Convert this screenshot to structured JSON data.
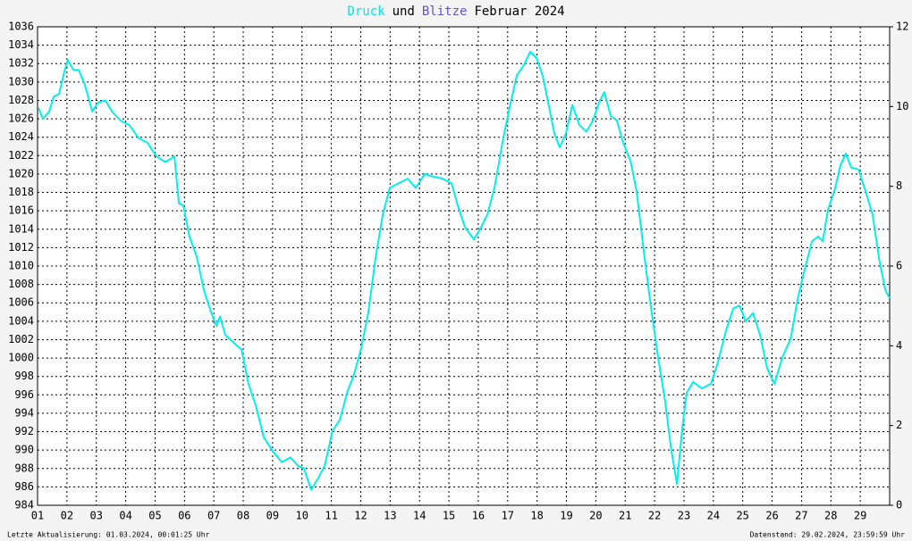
{
  "chart_data": {
    "type": "line",
    "title_parts": [
      {
        "text": "Druck",
        "color": "#00e8e8"
      },
      {
        "text": "und",
        "color": "#000000"
      },
      {
        "text": "Blitze",
        "color": "#6a50d0"
      },
      {
        "text": "Februar 2024",
        "color": "#000000"
      }
    ],
    "footer_left": "Letzte Aktualisierung: 01.03.2024, 00:01:25 Uhr",
    "footer_right": "Datenstand: 29.02.2024, 23:59:59 Uhr",
    "x": [
      1.03,
      1.18,
      1.4,
      1.55,
      1.73,
      1.91,
      2.03,
      2.22,
      2.4,
      2.61,
      2.86,
      3.07,
      3.31,
      3.53,
      3.83,
      4.13,
      4.44,
      4.74,
      5.05,
      5.35,
      5.66,
      5.81,
      5.96,
      6.17,
      6.42,
      6.66,
      6.9,
      7.09,
      7.21,
      7.39,
      7.7,
      7.94,
      8.18,
      8.43,
      8.7,
      9.0,
      9.31,
      9.61,
      9.86,
      10.07,
      10.31,
      10.56,
      10.77,
      11.04,
      11.29,
      11.53,
      11.77,
      12.02,
      12.26,
      12.5,
      12.75,
      12.99,
      13.29,
      13.6,
      13.87,
      14.18,
      14.48,
      14.79,
      15.09,
      15.3,
      15.55,
      15.85,
      16.09,
      16.31,
      16.55,
      16.82,
      17.07,
      17.31,
      17.56,
      17.77,
      17.98,
      18.19,
      18.41,
      18.59,
      18.77,
      18.98,
      19.2,
      19.44,
      19.68,
      19.9,
      20.11,
      20.29,
      20.51,
      20.72,
      20.93,
      21.18,
      21.39,
      21.63,
      21.88,
      22.12,
      22.36,
      22.55,
      22.76,
      22.94,
      23.09,
      23.31,
      23.61,
      23.92,
      24.16,
      24.43,
      24.68,
      24.89,
      25.1,
      25.35,
      25.59,
      25.83,
      26.08,
      26.35,
      26.63,
      26.87,
      27.12,
      27.36,
      27.57,
      27.72,
      27.9,
      28.15,
      28.33,
      28.51,
      28.69,
      28.94,
      29.18,
      29.42,
      29.64,
      29.85,
      30.0
    ],
    "series": [
      {
        "name": "Druck",
        "color": "#00f0f0",
        "values": [
          1027.2,
          1026,
          1026.8,
          1028.4,
          1028.7,
          1031.1,
          1032.4,
          1031.3,
          1031.3,
          1029.7,
          1026.8,
          1027.8,
          1028,
          1026.8,
          1025.8,
          1025.3,
          1023.9,
          1023.4,
          1021.9,
          1021.3,
          1021.9,
          1016.8,
          1016.6,
          1013.2,
          1011,
          1007.4,
          1005,
          1003.5,
          1004.5,
          1002.5,
          1001.6,
          1000.9,
          997.2,
          994.8,
          991.4,
          989.9,
          988.7,
          989.2,
          988.3,
          988,
          985.7,
          987,
          988.3,
          992.1,
          993.3,
          996.2,
          998.2,
          1001.1,
          1005,
          1010.8,
          1015.6,
          1018.5,
          1019,
          1019.5,
          1018.5,
          1020,
          1019.7,
          1019.5,
          1019,
          1016.6,
          1014.2,
          1012.9,
          1014.2,
          1015.6,
          1018.5,
          1023.4,
          1027.3,
          1030.7,
          1031.9,
          1033.3,
          1032.6,
          1030.7,
          1027.3,
          1024.4,
          1022.9,
          1024.4,
          1027.5,
          1025.3,
          1024.6,
          1025.8,
          1027.8,
          1028.9,
          1026.3,
          1025.8,
          1023.4,
          1021.4,
          1018.1,
          1011.7,
          1005.4,
          1000.1,
          995.3,
          990.4,
          986.3,
          992.3,
          996.2,
          997.4,
          996.7,
          997.2,
          999.6,
          1003,
          1005.4,
          1005.7,
          1004,
          1004.9,
          1002.5,
          998.9,
          997.2,
          1000.1,
          1002.1,
          1006.4,
          1009.8,
          1012.7,
          1013.2,
          1012.7,
          1016.1,
          1018.5,
          1021,
          1022.2,
          1020.7,
          1020.5,
          1018.1,
          1015.6,
          1010.8,
          1007.4,
          1006.5
        ]
      }
    ],
    "xlim": [
      1,
      30
    ],
    "xticks": [
      {
        "value": 1,
        "label": "01"
      },
      {
        "value": 2,
        "label": "02"
      },
      {
        "value": 3,
        "label": "03"
      },
      {
        "value": 4,
        "label": "04"
      },
      {
        "value": 5,
        "label": "05"
      },
      {
        "value": 6,
        "label": "06"
      },
      {
        "value": 7,
        "label": "07"
      },
      {
        "value": 8,
        "label": "08"
      },
      {
        "value": 9,
        "label": "09"
      },
      10,
      11,
      12,
      13,
      14,
      15,
      16,
      17,
      18,
      19,
      20,
      21,
      22,
      23,
      24,
      25,
      26,
      27,
      28,
      29
    ],
    "ylim": [
      984,
      1036
    ],
    "yticks": [
      984,
      986,
      988,
      990,
      992,
      994,
      996,
      998,
      1000,
      1002,
      1004,
      1006,
      1008,
      1010,
      1012,
      1014,
      1016,
      1018,
      1020,
      1022,
      1024,
      1026,
      1028,
      1030,
      1032,
      1034,
      1036
    ],
    "y2lim": [
      0,
      12
    ],
    "y2ticks": [
      0,
      2,
      4,
      6,
      8,
      10,
      12
    ],
    "grid": true
  }
}
